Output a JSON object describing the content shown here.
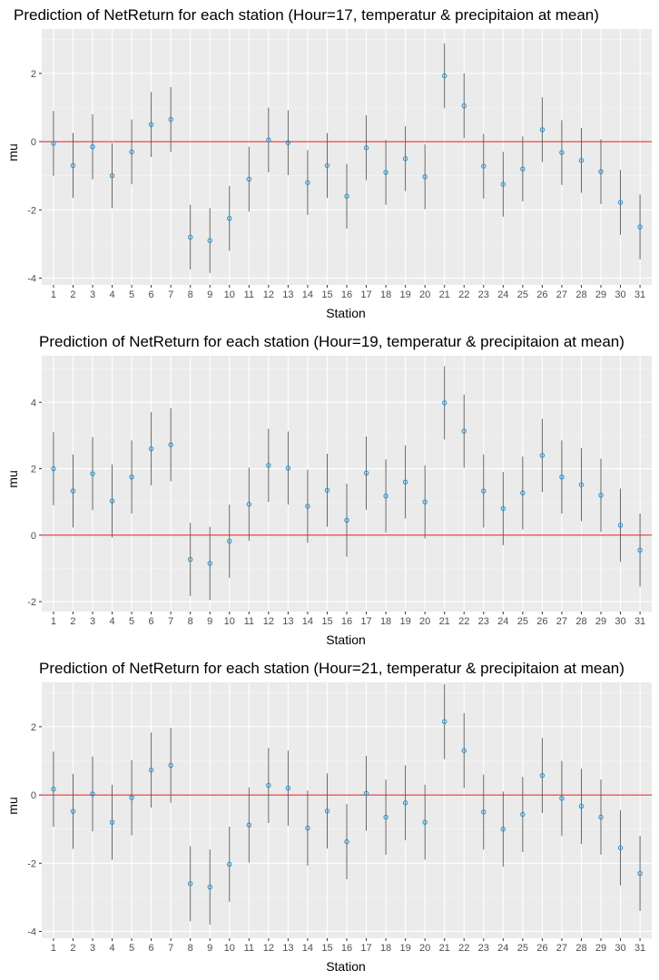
{
  "colors": {
    "panel_background": "#ebebeb",
    "major_grid": "#ffffff",
    "minor_grid": "#f5f5f5",
    "errorbar": "#5a5a5a",
    "point": "#1e90d6",
    "reference_line": "#e31a1c"
  },
  "chart_data": [
    {
      "type": "scatter",
      "title": "Prediction of NetReturn for each station (Hour=17, temperatur & precipitaion at mean)",
      "xlabel": "Station",
      "ylabel": "mu",
      "categories": [
        "1",
        "2",
        "3",
        "4",
        "5",
        "6",
        "7",
        "8",
        "9",
        "10",
        "11",
        "12",
        "13",
        "14",
        "15",
        "16",
        "17",
        "18",
        "19",
        "20",
        "21",
        "22",
        "23",
        "24",
        "25",
        "26",
        "27",
        "28",
        "29",
        "30",
        "31"
      ],
      "y_ticks": [
        -4,
        -2,
        0,
        2
      ],
      "y_tick_labels": [
        "-4",
        "-2",
        "0",
        "2"
      ],
      "ylim": [
        -4.2,
        3.3
      ],
      "reference_line_y": 0,
      "grid": true,
      "series": [
        {
          "values": [
            -0.05,
            -0.7,
            -0.15,
            -1.0,
            -0.3,
            0.5,
            0.65,
            -2.8,
            -2.9,
            -2.25,
            -1.1,
            0.05,
            -0.03,
            -1.2,
            -0.7,
            -1.6,
            -0.18,
            -0.9,
            -0.5,
            -1.03,
            1.93,
            1.05,
            -0.72,
            -1.25,
            -0.8,
            0.35,
            -0.32,
            -0.55,
            -0.88,
            -1.78,
            -2.5
          ],
          "lower": [
            -1.0,
            -1.65,
            -1.1,
            -1.95,
            -1.25,
            -0.45,
            -0.3,
            -3.75,
            -3.85,
            -3.2,
            -2.05,
            -0.9,
            -0.98,
            -2.15,
            -1.65,
            -2.55,
            -1.13,
            -1.85,
            -1.45,
            -1.98,
            0.98,
            0.1,
            -1.67,
            -2.2,
            -1.75,
            -0.6,
            -1.27,
            -1.5,
            -1.83,
            -2.73,
            -3.45
          ],
          "upper": [
            0.9,
            0.25,
            0.8,
            -0.05,
            0.65,
            1.45,
            1.6,
            -1.85,
            -1.95,
            -1.3,
            -0.15,
            1.0,
            0.92,
            -0.25,
            0.25,
            -0.65,
            0.77,
            0.05,
            0.45,
            -0.08,
            2.88,
            2.0,
            0.23,
            -0.3,
            0.15,
            1.3,
            0.63,
            0.4,
            0.07,
            -0.83,
            -1.55
          ]
        }
      ]
    },
    {
      "type": "scatter",
      "title": "Prediction of NetReturn for each station (Hour=19, temperatur & precipitaion at mean)",
      "xlabel": "Station",
      "ylabel": "mu",
      "categories": [
        "1",
        "2",
        "3",
        "4",
        "5",
        "6",
        "7",
        "8",
        "9",
        "10",
        "11",
        "12",
        "13",
        "14",
        "15",
        "16",
        "17",
        "18",
        "19",
        "20",
        "21",
        "22",
        "23",
        "24",
        "25",
        "26",
        "27",
        "28",
        "29",
        "30",
        "31"
      ],
      "y_ticks": [
        -2,
        0,
        2,
        4
      ],
      "y_tick_labels": [
        "-2",
        "0",
        "2",
        "4"
      ],
      "ylim": [
        -2.3,
        5.4
      ],
      "reference_line_y": 0,
      "grid": true,
      "series": [
        {
          "values": [
            2.0,
            1.33,
            1.85,
            1.03,
            1.75,
            2.6,
            2.72,
            -0.73,
            -0.85,
            -0.18,
            0.93,
            2.1,
            2.02,
            0.87,
            1.35,
            0.45,
            1.87,
            1.18,
            1.6,
            1.0,
            3.98,
            3.13,
            1.33,
            0.8,
            1.27,
            2.4,
            1.75,
            1.52,
            1.2,
            0.3,
            -0.45
          ],
          "lower": [
            0.9,
            0.23,
            0.75,
            -0.07,
            0.65,
            1.5,
            1.62,
            -1.83,
            -1.95,
            -1.28,
            -0.17,
            1.0,
            0.92,
            -0.23,
            0.25,
            -0.65,
            0.77,
            0.08,
            0.5,
            -0.1,
            2.88,
            2.03,
            0.23,
            -0.3,
            0.17,
            1.3,
            0.65,
            0.42,
            0.1,
            -0.8,
            -1.55
          ],
          "upper": [
            3.1,
            2.43,
            2.95,
            2.13,
            2.85,
            3.7,
            3.82,
            0.37,
            0.25,
            0.92,
            2.03,
            3.2,
            3.12,
            1.97,
            2.45,
            1.55,
            2.97,
            2.28,
            2.7,
            2.1,
            5.08,
            4.23,
            2.43,
            1.9,
            2.37,
            3.5,
            2.85,
            2.62,
            2.3,
            1.4,
            0.65
          ]
        }
      ]
    },
    {
      "type": "scatter",
      "title": "Prediction of NetReturn for each station (Hour=21, temperatur & precipitaion at mean)",
      "xlabel": "Station",
      "ylabel": "mu",
      "categories": [
        "1",
        "2",
        "3",
        "4",
        "5",
        "6",
        "7",
        "8",
        "9",
        "10",
        "11",
        "12",
        "13",
        "14",
        "15",
        "16",
        "17",
        "18",
        "19",
        "20",
        "21",
        "22",
        "23",
        "24",
        "25",
        "26",
        "27",
        "28",
        "29",
        "30",
        "31"
      ],
      "y_ticks": [
        -4,
        -2,
        0,
        2
      ],
      "y_tick_labels": [
        "-4",
        "-2",
        "0",
        "2"
      ],
      "ylim": [
        -4.2,
        3.3
      ],
      "reference_line_y": 0,
      "grid": true,
      "series": [
        {
          "values": [
            0.17,
            -0.48,
            0.03,
            -0.8,
            -0.08,
            0.73,
            0.87,
            -2.6,
            -2.7,
            -2.03,
            -0.88,
            0.28,
            0.2,
            -0.97,
            -0.47,
            -1.37,
            0.05,
            -0.65,
            -0.23,
            -0.8,
            2.15,
            1.3,
            -0.5,
            -1.0,
            -0.57,
            0.57,
            -0.1,
            -0.33,
            -0.65,
            -1.55,
            -2.3
          ],
          "lower": [
            -0.93,
            -1.58,
            -1.07,
            -1.9,
            -1.18,
            -0.37,
            -0.23,
            -3.7,
            -3.8,
            -3.13,
            -1.98,
            -0.82,
            -0.9,
            -2.07,
            -1.57,
            -2.47,
            -1.05,
            -1.75,
            -1.33,
            -1.9,
            1.05,
            0.2,
            -1.6,
            -2.1,
            -1.67,
            -0.53,
            -1.2,
            -1.43,
            -1.75,
            -2.65,
            -3.4
          ],
          "upper": [
            1.27,
            0.62,
            1.13,
            0.3,
            1.02,
            1.83,
            1.97,
            -1.5,
            -1.6,
            -0.93,
            0.22,
            1.38,
            1.3,
            0.13,
            0.63,
            -0.27,
            1.15,
            0.45,
            0.87,
            0.3,
            3.25,
            2.4,
            0.6,
            0.1,
            0.53,
            1.67,
            1.0,
            0.77,
            0.45,
            -0.45,
            -1.2
          ]
        }
      ]
    }
  ]
}
